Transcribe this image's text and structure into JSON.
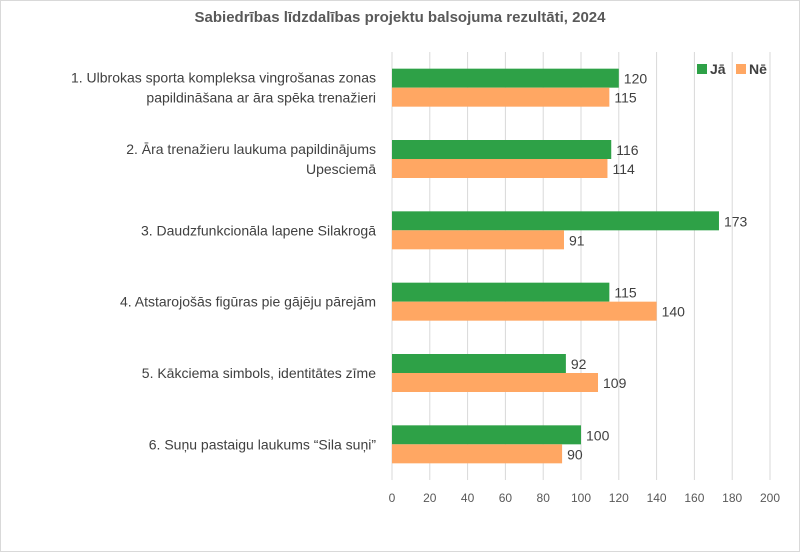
{
  "chart_data": {
    "type": "bar",
    "orientation": "horizontal",
    "title": "Sabiedrības līdzdalības projektu balsojuma rezultāti, 2024",
    "categories": [
      [
        "1. Ulbrokas sporta kompleksa vingrošanas zonas",
        "papildināšana ar āra spēka trenažieri"
      ],
      [
        "2. Āra trenažieru laukuma papildinājums",
        "Upesciemā"
      ],
      [
        "3. Daudzfunkcionāla lapene Silakrogā"
      ],
      [
        "4. Atstarojošās figūras pie gājēju pārejām"
      ],
      [
        "5. Kākciema simbols, identitātes zīme"
      ],
      [
        "6. Suņu pastaigu laukums “Sila suņi”"
      ]
    ],
    "series": [
      {
        "name": "Jā",
        "color": "#2ea147",
        "values": [
          120,
          116,
          173,
          115,
          92,
          100
        ]
      },
      {
        "name": "Nē",
        "color": "#ffa763",
        "values": [
          115,
          114,
          91,
          140,
          109,
          90
        ]
      }
    ],
    "xlim": [
      0,
      200
    ],
    "xticks": [
      0,
      20,
      40,
      60,
      80,
      100,
      120,
      140,
      160,
      180,
      200
    ],
    "grid": true,
    "legend": "top-right"
  }
}
